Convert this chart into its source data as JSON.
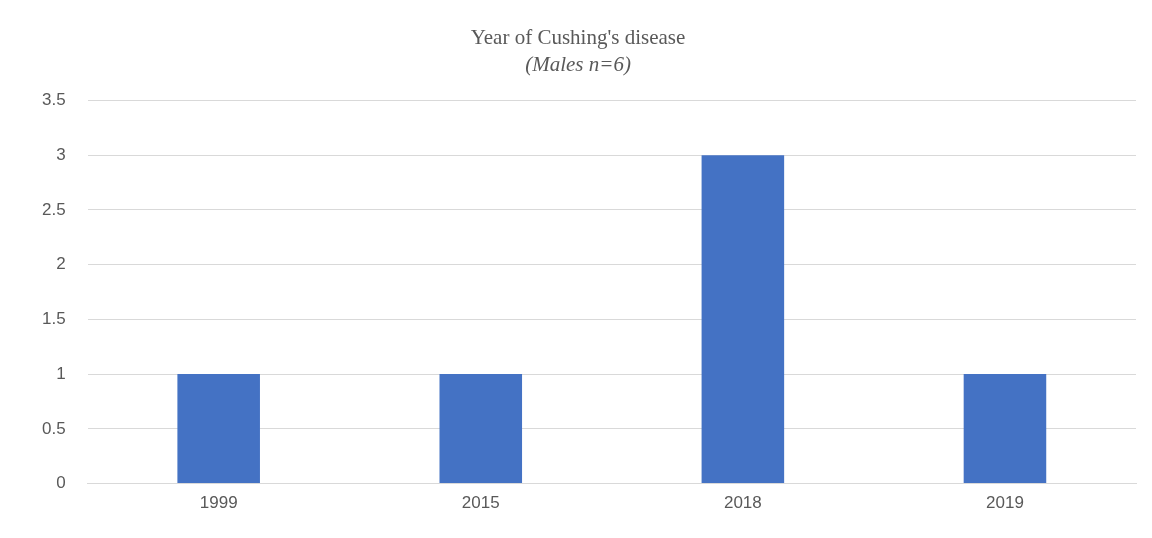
{
  "chart_data": {
    "type": "bar",
    "title": "Year of Cushing's disease",
    "subtitle": "(Males n=6)",
    "categories": [
      "1999",
      "2015",
      "2018",
      "2019"
    ],
    "values": [
      1,
      1,
      3,
      1
    ],
    "color": "#4472c4",
    "ylim": [
      0,
      3.5
    ],
    "yticks": [
      0,
      0.5,
      1,
      1.5,
      2,
      2.5,
      3,
      3.5
    ],
    "grid": "y"
  }
}
